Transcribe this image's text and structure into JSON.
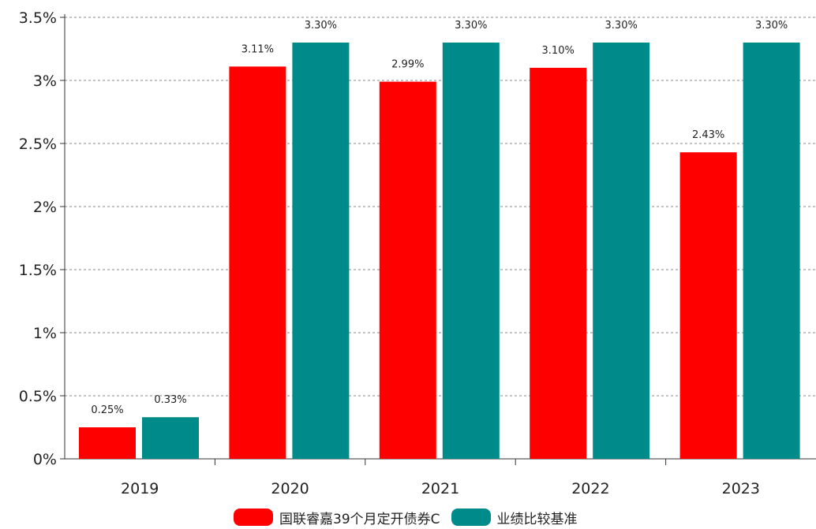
{
  "chart_data": {
    "type": "bar",
    "categories": [
      "2019",
      "2020",
      "2021",
      "2022",
      "2023"
    ],
    "series": [
      {
        "name": "国联睿嘉39个月定开债券C",
        "color": "#ff0000",
        "values": [
          0.25,
          3.11,
          2.99,
          3.1,
          2.43
        ],
        "labels": [
          "0.25%",
          "3.11%",
          "2.99%",
          "3.10%",
          "2.43%"
        ]
      },
      {
        "name": "业绩比较基准",
        "color": "#008b8b",
        "values": [
          0.33,
          3.3,
          3.3,
          3.3,
          3.3
        ],
        "labels": [
          "0.33%",
          "3.30%",
          "3.30%",
          "3.30%",
          "3.30%"
        ]
      }
    ],
    "y_ticks": [
      0,
      0.5,
      1,
      1.5,
      2,
      2.5,
      3,
      3.5
    ],
    "y_tick_labels": [
      "0%",
      "0.5%",
      "1%",
      "1.5%",
      "2%",
      "2.5%",
      "3%",
      "3.5%"
    ],
    "ylim": [
      0,
      3.5
    ],
    "grid": true,
    "legend_position": "bottom"
  }
}
